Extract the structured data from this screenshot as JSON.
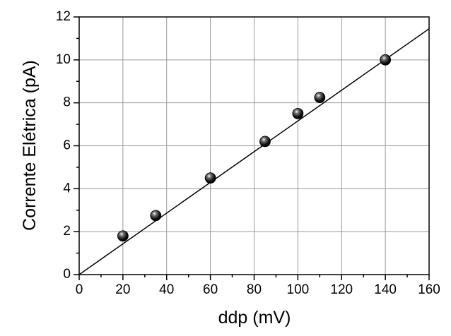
{
  "chart_data": {
    "type": "scatter",
    "xlabel": "ddp (mV)",
    "ylabel": "Corrente Elétrica (pA)",
    "series": [
      {
        "type": "scatter",
        "color": "#000000",
        "x": [
          20,
          35,
          60,
          85,
          100,
          110,
          140
        ],
        "values": [
          1.8,
          2.75,
          4.5,
          6.2,
          7.5,
          8.25,
          10
        ]
      },
      {
        "type": "line",
        "color": "#000000",
        "x": [
          0,
          160
        ],
        "values": [
          0,
          11.45
        ]
      }
    ],
    "xlim": [
      0,
      160
    ],
    "xticks": [
      0,
      20,
      40,
      60,
      80,
      100,
      120,
      140,
      160
    ],
    "xminorticks": [
      10,
      30,
      50,
      70,
      90,
      110,
      130,
      150
    ],
    "ylim": [
      0,
      12
    ],
    "yticks": [
      0,
      2,
      4,
      6,
      8,
      10,
      12
    ],
    "yminorticks": [
      1,
      3,
      5,
      7,
      9,
      11
    ],
    "grid": true
  }
}
